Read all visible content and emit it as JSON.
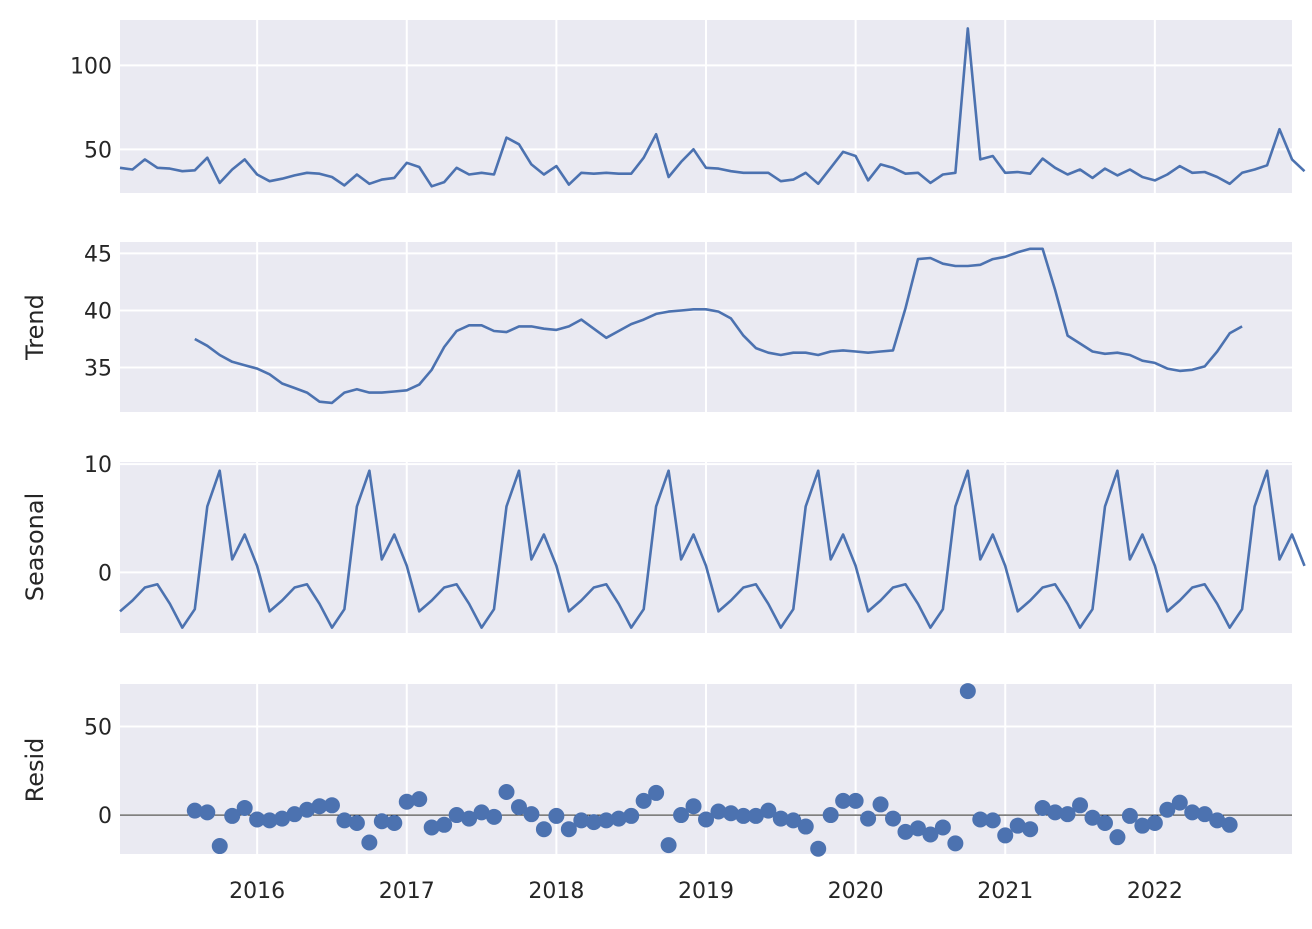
{
  "colors": {
    "panel_background": "#eaeaf2",
    "grid": "#ffffff",
    "series": "#4c72b0",
    "zero_line": "#000000",
    "text": "#262626"
  },
  "chart_data": [
    {
      "type": "line",
      "name": "observed",
      "ylabel": "",
      "ylim": [
        24,
        127
      ],
      "yticks": [
        50,
        100
      ],
      "x_start": "2015-02",
      "values": [
        39,
        38,
        44,
        39,
        38.5,
        37,
        37.5,
        45,
        30,
        38,
        44,
        35,
        31,
        32.5,
        34.5,
        36,
        35.5,
        33.5,
        28.5,
        35,
        29.5,
        32,
        33,
        42,
        39.5,
        28,
        30.5,
        39,
        35,
        36,
        35,
        57,
        53,
        41,
        35,
        40,
        29,
        36,
        35.5,
        36,
        35.5,
        35.5,
        45,
        59,
        33.5,
        42.5,
        50,
        39,
        38.5,
        37,
        36,
        36,
        36,
        31,
        32,
        36,
        29.5,
        39,
        48.5,
        46,
        31.5,
        41,
        39,
        35.5,
        36,
        30,
        35,
        36,
        122,
        44,
        46,
        36,
        36.5,
        35.5,
        44.5,
        39,
        35,
        38,
        33,
        38.5,
        34.5,
        38,
        33.5,
        31.5,
        35,
        40,
        36,
        36.5,
        33.5,
        29.5,
        36,
        38,
        40.5,
        62,
        44,
        37
      ]
    },
    {
      "type": "line",
      "name": "trend",
      "ylabel": "Trend",
      "ylim": [
        31.1,
        46
      ],
      "yticks": [
        35,
        40,
        45
      ],
      "x_start": "2015-08",
      "values": [
        37.5,
        36.9,
        36.1,
        35.5,
        35.2,
        34.9,
        34.4,
        33.6,
        33.2,
        32.8,
        32.0,
        31.9,
        32.8,
        33.1,
        32.8,
        32.8,
        32.9,
        33.0,
        33.5,
        34.8,
        36.8,
        38.2,
        38.7,
        38.7,
        38.2,
        38.1,
        38.6,
        38.6,
        38.4,
        38.3,
        38.6,
        39.2,
        38.4,
        37.6,
        38.2,
        38.8,
        39.2,
        39.7,
        39.9,
        40.0,
        40.1,
        40.1,
        39.9,
        39.3,
        37.8,
        36.7,
        36.3,
        36.1,
        36.3,
        36.3,
        36.1,
        36.4,
        36.5,
        36.4,
        36.3,
        36.4,
        36.5,
        40.2,
        44.5,
        44.6,
        44.1,
        43.9,
        43.9,
        44.0,
        44.5,
        44.7,
        45.1,
        45.4,
        45.4,
        41.8,
        37.8,
        37.1,
        36.4,
        36.2,
        36.3,
        36.1,
        35.6,
        35.4,
        34.9,
        34.7,
        34.8,
        35.1,
        36.4,
        38.0,
        38.6
      ]
    },
    {
      "type": "line",
      "name": "seasonal",
      "ylabel": "Seasonal",
      "ylim": [
        -5.6,
        10.2
      ],
      "yticks": [
        0,
        10
      ],
      "x_start": "2015-02",
      "pattern": [
        -3.6,
        -2.6,
        -1.4,
        -1.1,
        -2.9,
        -5.1,
        -3.4,
        6.1,
        9.4,
        1.2,
        3.5,
        0.6
      ],
      "count": 96
    },
    {
      "type": "scatter",
      "name": "resid",
      "ylabel": "Resid",
      "ylim": [
        -22,
        74
      ],
      "yticks": [
        0,
        50
      ],
      "zero_line": true,
      "x_start": "2015-08",
      "values": [
        2.5,
        1.5,
        -17.5,
        -0.5,
        4,
        -2.5,
        -3,
        -2,
        0.5,
        3,
        5,
        5.5,
        -3,
        -4.5,
        -15.5,
        -3.5,
        -4.5,
        7.5,
        9,
        -7,
        -5.5,
        0,
        -2,
        1.5,
        -1,
        13,
        4.5,
        0.5,
        -8,
        -0.5,
        -8,
        -3,
        -4,
        -3,
        -2,
        -0.5,
        8,
        12.5,
        -17,
        0,
        5,
        -2.5,
        2,
        1,
        -0.5,
        -0.5,
        2.5,
        -2,
        -3,
        -6.5,
        -19,
        0,
        8,
        8,
        -2,
        6,
        -2,
        -9.5,
        -7.5,
        -11,
        -7,
        -16,
        70,
        -2.5,
        -3,
        -11.5,
        -6,
        -8,
        4,
        1.5,
        0.5,
        5.5,
        -1.5,
        -4.5,
        -12.5,
        -0.5,
        -6,
        -4.5,
        3,
        7,
        1.5,
        0.5,
        -3,
        -5.5
      ]
    }
  ],
  "x_axis": {
    "start": "2015-02",
    "end": "2022-12",
    "ticks": [
      {
        "label": "2016",
        "date": "2016-01"
      },
      {
        "label": "2017",
        "date": "2017-01"
      },
      {
        "label": "2018",
        "date": "2018-01"
      },
      {
        "label": "2019",
        "date": "2019-01"
      },
      {
        "label": "2020",
        "date": "2020-01"
      },
      {
        "label": "2021",
        "date": "2021-01"
      },
      {
        "label": "2022",
        "date": "2022-01"
      }
    ]
  }
}
